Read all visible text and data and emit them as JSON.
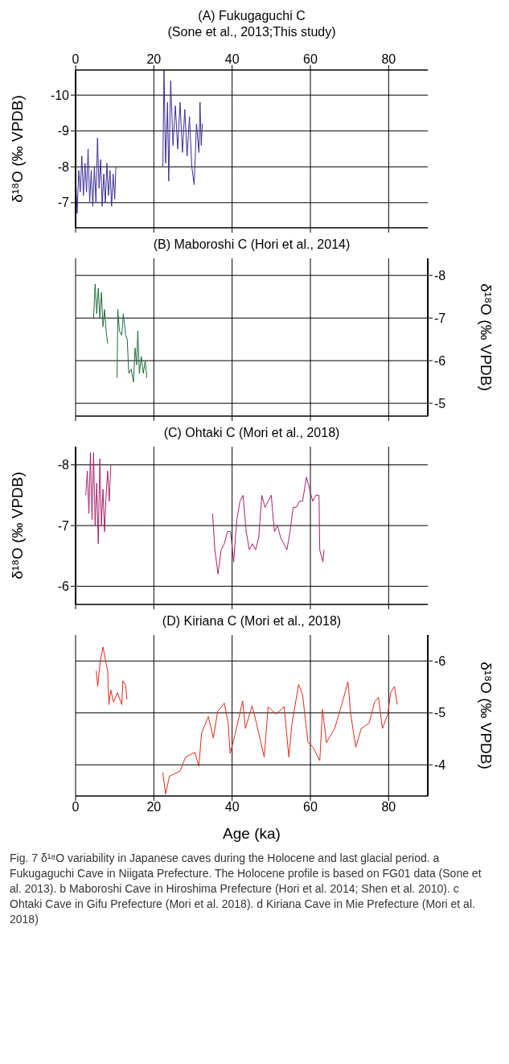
{
  "chart_data": [
    {
      "type": "line",
      "title": "(A) Fukugaguchi C",
      "subtitle": "(Sone et al., 2013;This study)",
      "ylabel": "δ¹⁸O (‰ VPDB)",
      "xlim": [
        0,
        90
      ],
      "xticks": [
        0,
        20,
        40,
        60,
        80
      ],
      "x2lim": [
        0,
        90
      ],
      "x2ticks": [
        0,
        20,
        40,
        60,
        80
      ],
      "ylim": [
        -6.3,
        -10.7
      ],
      "yticks": [
        -10,
        -9,
        -8,
        -7
      ],
      "tick_labels": "y",
      "grid": true,
      "marker": "none",
      "series": [
        {
          "color": "#3a2d96",
          "x": [
            0.1,
            0.4,
            0.8,
            1.2,
            1.6,
            2.0,
            2.4,
            2.8,
            3.2,
            3.6,
            4.0,
            4.4,
            4.8,
            5.2,
            5.6,
            6.0,
            6.4,
            6.8,
            7.2,
            7.6,
            8.0,
            8.4,
            8.8,
            9.2,
            9.6,
            10.0,
            10.3,
            16.0,
            22.3,
            22.6,
            23.0,
            23.5,
            23.8,
            24.3,
            24.9,
            25.5,
            26.1,
            26.7,
            27.3,
            27.9,
            28.5,
            29.1,
            29.7,
            30.3,
            30.9,
            31.5,
            31.8,
            32.1,
            32.4
          ],
          "values": [
            -7.5,
            -6.7,
            -7.9,
            -7.3,
            -8.3,
            -7.2,
            -8.1,
            -7.3,
            -8.5,
            -7.0,
            -7.9,
            -6.9,
            -8.0,
            -7.0,
            -8.8,
            -7.4,
            -8.2,
            -6.9,
            -7.8,
            -7.0,
            -8.1,
            -7.2,
            -7.9,
            -6.9,
            -7.8,
            -7.1,
            -8.0,
            null,
            -8.0,
            -10.7,
            -8.1,
            -9.8,
            -7.6,
            -10.4,
            -8.6,
            -9.7,
            -8.5,
            -9.8,
            -8.4,
            -9.6,
            -8.3,
            -9.4,
            -8.0,
            -7.5,
            -9.2,
            -8.4,
            -9.8,
            -8.6,
            -9.2
          ]
        }
      ]
    },
    {
      "type": "line",
      "title": "(B) Maboroshi C (Hori et al., 2014)",
      "y2label": "δ¹⁸O (‰ VPDB)",
      "xlim": [
        0,
        90
      ],
      "xticks": [
        0,
        20,
        40,
        60,
        80
      ],
      "y2lim": [
        -4.7,
        -8.4
      ],
      "y2ticks": [
        -8,
        -7,
        -6,
        -5
      ],
      "tick_labels": "y",
      "grid": true,
      "marker": "none",
      "series": [
        {
          "color": "#1e6b3a",
          "axis": "y2",
          "x": [
            4.6,
            5.0,
            5.4,
            5.8,
            6.2,
            6.6,
            7.0,
            7.4,
            7.8,
            8.2,
            9.4,
            10.6,
            10.8,
            11.2,
            11.8,
            12.2,
            12.8,
            13.2,
            13.6,
            14.2,
            14.8,
            15.2,
            15.6,
            15.9,
            16.3,
            16.8,
            17.3,
            17.8,
            18.2
          ],
          "values": [
            -7.0,
            -7.8,
            -7.1,
            -7.7,
            -7.0,
            -7.6,
            -6.8,
            -7.2,
            -6.7,
            -6.4,
            null,
            -5.6,
            -7.2,
            -6.7,
            -6.6,
            -7.1,
            -6.6,
            -6.5,
            -5.7,
            -5.8,
            -5.5,
            -6.3,
            -5.9,
            -6.7,
            -5.7,
            -6.1,
            -5.7,
            -6.0,
            -5.6
          ]
        }
      ]
    },
    {
      "type": "line",
      "title": "(C) Ohtaki C (Mori et al., 2018)",
      "ylabel": "δ¹⁸O (‰ VPDB)",
      "xlim": [
        0,
        90
      ],
      "xticks": [
        0,
        20,
        40,
        60,
        80
      ],
      "ylim": [
        -5.7,
        -8.3
      ],
      "yticks": [
        -8,
        -7,
        -6
      ],
      "tick_labels": "y",
      "grid": true,
      "marker": "none",
      "series": [
        {
          "color": "#a8206a",
          "x": [
            2.6,
            3.0,
            3.4,
            3.8,
            4.2,
            4.6,
            5.0,
            5.4,
            5.8,
            6.2,
            6.6,
            7.0,
            7.4,
            7.8,
            8.2,
            8.6,
            9.0,
            20.0,
            35.0,
            35.6,
            36.4,
            37.2,
            38.0,
            38.8,
            39.6,
            40.4,
            41.2,
            42.0,
            42.8,
            43.6,
            44.4,
            45.2,
            46.0,
            46.8,
            47.6,
            48.4,
            49.2,
            50.0,
            50.8,
            51.6,
            52.4,
            53.2,
            54.0,
            54.8,
            55.6,
            56.4,
            57.2,
            58.0,
            59.0,
            59.8,
            60.6,
            61.4,
            62.2,
            62.4,
            63.2,
            63.5
          ],
          "values": [
            -7.5,
            -7.9,
            -7.2,
            -8.2,
            -7.1,
            -8.2,
            -7.0,
            -7.7,
            -6.7,
            -8.1,
            -7.0,
            -7.6,
            -6.9,
            -7.5,
            -7.9,
            -7.4,
            -8.0,
            null,
            -7.2,
            -6.6,
            -6.2,
            -6.6,
            -6.7,
            -6.9,
            -6.9,
            -6.4,
            -7.1,
            -7.4,
            -7.5,
            -6.9,
            -6.6,
            -6.7,
            -6.6,
            -6.8,
            -7.5,
            -7.3,
            -7.4,
            -7.5,
            -6.9,
            -7.0,
            -6.8,
            -6.7,
            -6.6,
            -6.9,
            -7.3,
            -7.3,
            -7.4,
            -7.4,
            -7.8,
            -7.6,
            -7.4,
            -7.5,
            -7.5,
            -6.6,
            -6.4,
            -6.6
          ]
        }
      ]
    },
    {
      "type": "line",
      "title": "(D) Kiriana C (Mori et al., 2018)",
      "xlabel": "Age (ka)",
      "y2label": "δ¹⁸O (‰ VPDB)",
      "xlim": [
        0,
        90
      ],
      "xticks": [
        0,
        20,
        40,
        60,
        80
      ],
      "y2lim": [
        -3.4,
        -6.5
      ],
      "y2ticks": [
        -6,
        -5,
        -4
      ],
      "grid": true,
      "marker": "none",
      "annotations": [
        "Fig. 7 δ¹⁸O variability in Japanese caves during the Holocene and last glacial period. a Fukugaguchi Cave in Niigata Prefecture. The Holocene profile is based on FG01 data (Sone et al. 2013). b Maboroshi Cave in Hiroshima Prefecture (Hori et al. 2014; Shen et al. 2010). c Ohtaki Cave in Gifu Prefecture (Mori et al. 2018). d Kiriana Cave in Mie Prefecture (Mori et al. 2018)"
      ],
      "series": [
        {
          "color": "#e02a1a",
          "axis": "y2",
          "x": [
            5.3,
            5.65,
            6.3,
            7.0,
            7.7,
            8.2,
            8.5,
            9.0,
            9.7,
            10.7,
            11.8,
            12.1,
            12.8,
            13.1,
            18.0,
            22.3,
            23.0,
            24.0,
            26.7,
            28.1,
            30.5,
            31.5,
            32.2,
            33.9,
            35.2,
            36.3,
            38.0,
            39.0,
            39.5,
            40.7,
            42.7,
            43.4,
            45.1,
            46.1,
            48.2,
            49.2,
            51.2,
            53.3,
            54.5,
            55.3,
            57.0,
            58.0,
            58.7,
            59.4,
            60.7,
            62.4,
            63.1,
            64.1,
            66.2,
            68.2,
            69.6,
            70.3,
            71.6,
            73.0,
            75.0,
            76.4,
            77.4,
            78.4,
            79.8,
            80.5,
            81.5,
            82.2
          ],
          "values": [
            -5.81,
            -5.51,
            -5.99,
            -6.27,
            -5.99,
            -5.81,
            -5.16,
            -5.44,
            -5.21,
            -5.39,
            -5.16,
            -5.62,
            -5.53,
            -5.26,
            null,
            -3.85,
            -3.44,
            -3.78,
            -3.88,
            -4.15,
            -4.24,
            -3.97,
            -4.61,
            -4.93,
            -4.52,
            -5.03,
            -5.19,
            -4.8,
            -4.22,
            -4.57,
            -5.23,
            -4.7,
            -5.14,
            -4.84,
            -4.15,
            -5.12,
            -4.98,
            -5.12,
            -4.15,
            -4.8,
            -5.55,
            -5.35,
            -4.89,
            -4.43,
            -4.34,
            -4.08,
            -5.07,
            -4.43,
            -4.7,
            -5.21,
            -5.6,
            -4.98,
            -4.34,
            -4.7,
            -4.8,
            -5.21,
            -5.3,
            -4.7,
            -4.98,
            -5.39,
            -5.51,
            -5.16
          ]
        }
      ]
    }
  ]
}
